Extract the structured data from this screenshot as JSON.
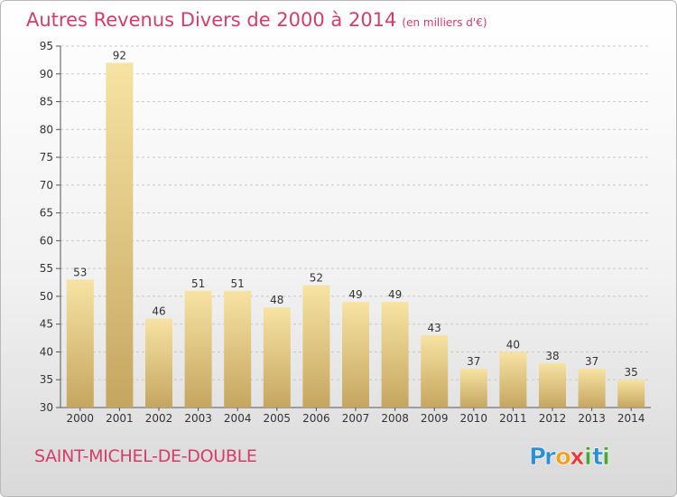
{
  "header": {
    "title": "Autres Revenus Divers de 2000 à 2014",
    "unit": "(en milliers d'€)"
  },
  "footer": {
    "town": "SAINT-MICHEL-DE-DOUBLE",
    "brand": "Proxiti",
    "brand_letters": [
      {
        "ch": "P",
        "color": "#2a8fd6"
      },
      {
        "ch": "r",
        "color": "#2a8fd6"
      },
      {
        "ch": "o",
        "color": "#f0a21e"
      },
      {
        "ch": "x",
        "color": "#e63b3b"
      },
      {
        "ch": "i",
        "color": "#4aa832"
      },
      {
        "ch": "t",
        "color": "#2a8fd6"
      },
      {
        "ch": "i",
        "color": "#4aa832"
      }
    ]
  },
  "colors": {
    "accent": "#d63c6a",
    "bar_light": "#f7e3a3",
    "bar_dark": "#c5a660",
    "grid": "#c8c8c8"
  },
  "chart_data": {
    "type": "bar",
    "title": "Autres Revenus Divers de 2000 à 2014",
    "subtitle": "(en milliers d'€)",
    "categories": [
      "2000",
      "2001",
      "2002",
      "2003",
      "2004",
      "2005",
      "2006",
      "2007",
      "2008",
      "2009",
      "2010",
      "2011",
      "2012",
      "2013",
      "2014"
    ],
    "values": [
      53,
      92,
      46,
      51,
      51,
      48,
      52,
      49,
      49,
      43,
      37,
      40,
      38,
      37,
      35
    ],
    "ylim": [
      30,
      95
    ],
    "yticks": [
      30,
      35,
      40,
      45,
      50,
      55,
      60,
      65,
      70,
      75,
      80,
      85,
      90,
      95
    ],
    "grid": true,
    "data_labels": true,
    "xlabel": "",
    "ylabel": ""
  }
}
